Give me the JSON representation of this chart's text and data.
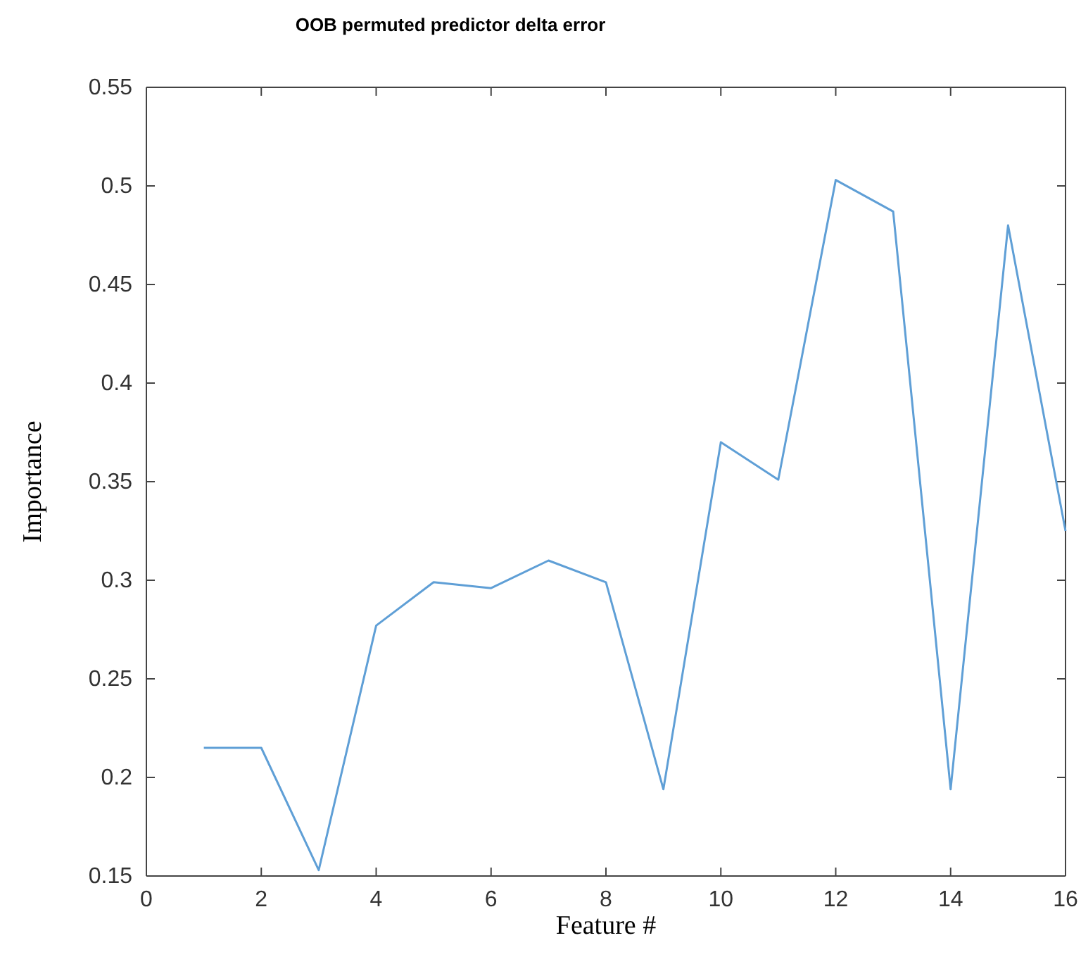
{
  "chart_data": {
    "type": "line",
    "title": "OOB permuted predictor delta error",
    "xlabel": "Feature #",
    "ylabel": "Importance",
    "x": [
      1,
      2,
      3,
      4,
      5,
      6,
      7,
      8,
      9,
      10,
      11,
      12,
      13,
      14,
      15,
      16
    ],
    "series": [
      {
        "color": "#5f9fd6",
        "values": [
          0.215,
          0.215,
          0.153,
          0.277,
          0.299,
          0.296,
          0.31,
          0.299,
          0.194,
          0.37,
          0.351,
          0.503,
          0.487,
          0.194,
          0.48,
          0.325
        ]
      }
    ],
    "xlim": [
      0,
      16
    ],
    "xticks": [
      0,
      2,
      4,
      6,
      8,
      10,
      12,
      14,
      16
    ],
    "ylim": [
      0.15,
      0.55
    ],
    "yticks": [
      0.15,
      0.2,
      0.25,
      0.3,
      0.35,
      0.4,
      0.45,
      0.5,
      0.55
    ],
    "grid": false,
    "marker": "none",
    "line_style": "solid"
  }
}
